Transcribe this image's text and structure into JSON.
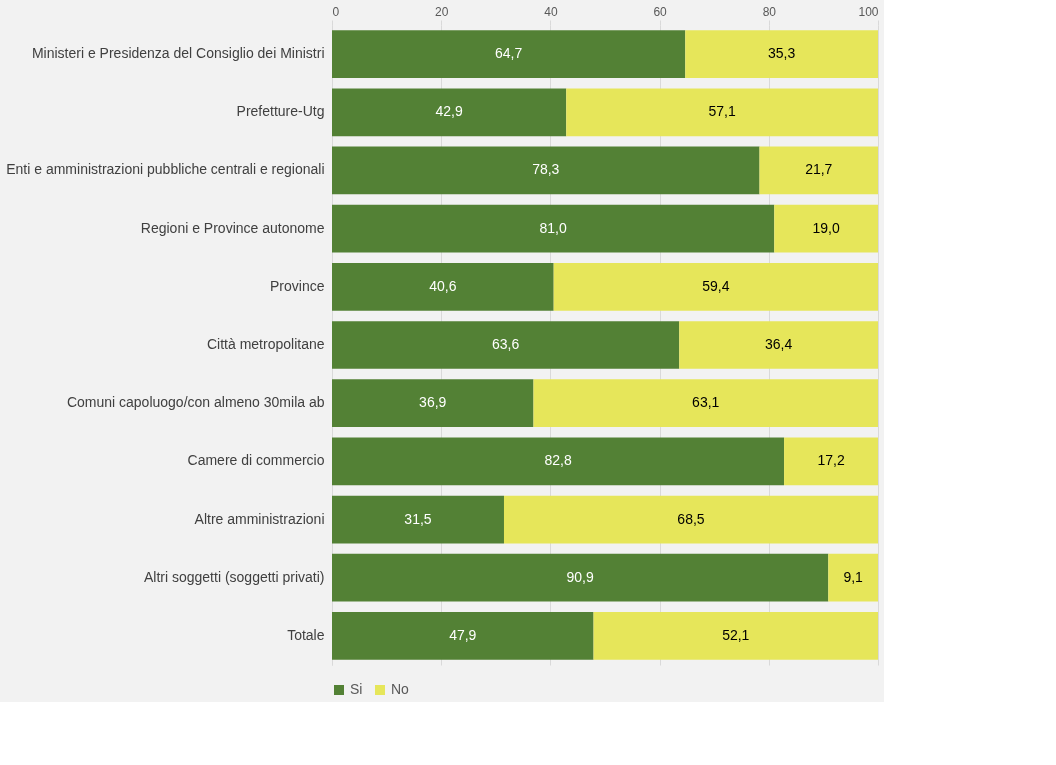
{
  "chart_data": {
    "type": "bar",
    "orientation": "horizontal",
    "stacked": true,
    "categories": [
      "Ministeri e Presidenza del Consiglio dei Ministri",
      "Prefetture-Utg",
      "Enti e amministrazioni pubbliche centrali e regionali",
      "Regioni e Province autonome",
      "Province",
      "Città metropolitane",
      "Comuni capoluogo/con almeno 30mila ab",
      "Camere di commercio",
      "Altre amministrazioni ",
      "Altri soggetti (soggetti privati)",
      "Totale"
    ],
    "series": [
      {
        "name": "Si",
        "color": "#538135",
        "values": [
          64.7,
          42.9,
          78.3,
          81.0,
          40.6,
          63.6,
          36.9,
          82.8,
          31.5,
          90.9,
          47.9
        ],
        "value_labels": [
          "64,7",
          "42,9",
          "78,3",
          "81,0",
          "40,6",
          "63,6",
          "36,9",
          "82,8",
          "31,5",
          "90,9",
          "47,9"
        ]
      },
      {
        "name": "No",
        "color": "#e6e65a",
        "values": [
          35.3,
          57.1,
          21.7,
          19.0,
          59.4,
          36.4,
          63.1,
          17.2,
          68.5,
          9.1,
          52.1
        ],
        "value_labels": [
          "35,3",
          "57,1",
          "21,7",
          "19,0",
          "59,4",
          "36,4",
          "63,1",
          "17,2",
          "68,5",
          "9,1",
          "52,1"
        ]
      }
    ],
    "xlim": [
      0,
      100
    ],
    "xticks": [
      0,
      20,
      40,
      60,
      80,
      100
    ],
    "grid": "x",
    "legend": "bottom"
  }
}
